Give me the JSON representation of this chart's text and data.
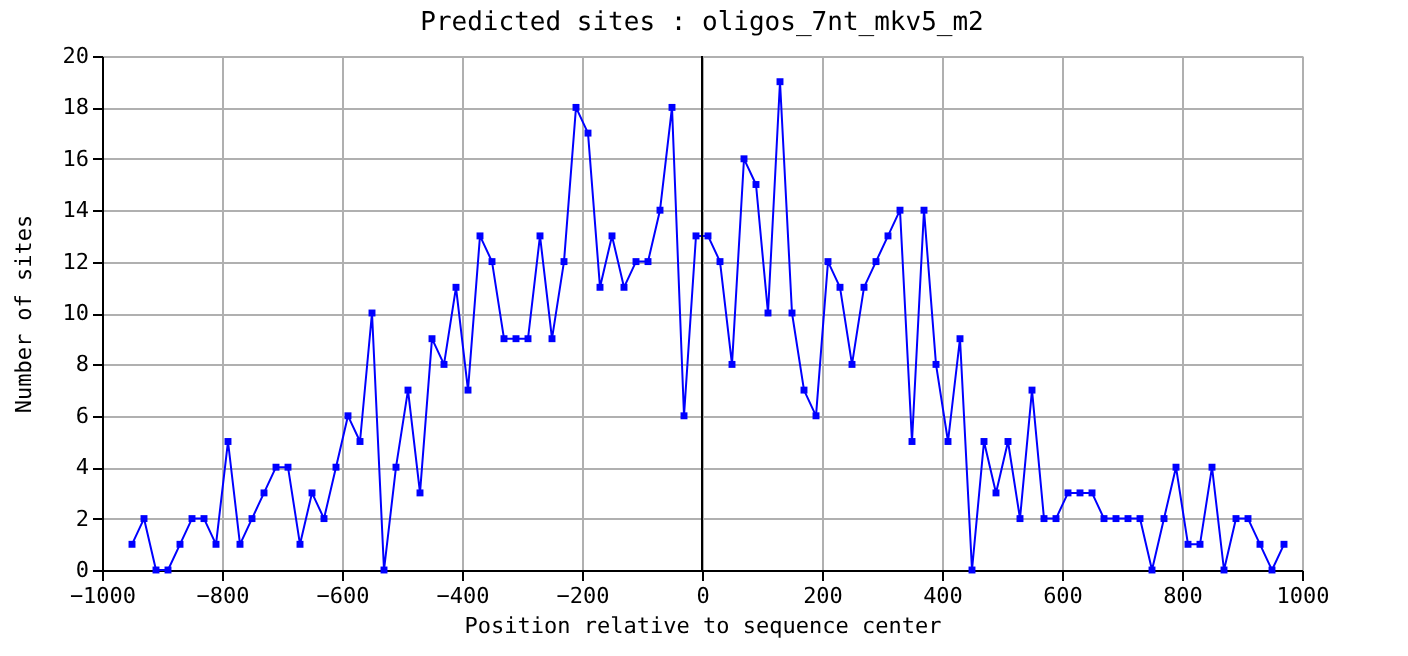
{
  "chart_data": {
    "type": "line",
    "title": "Predicted sites : oligos_7nt_mkv5_m2",
    "xlabel": "Position relative to sequence center",
    "ylabel": "Number of sites",
    "x": [
      -950,
      -930,
      -910,
      -890,
      -870,
      -850,
      -830,
      -810,
      -790,
      -770,
      -750,
      -730,
      -710,
      -690,
      -670,
      -650,
      -630,
      -610,
      -590,
      -570,
      -550,
      -530,
      -510,
      -490,
      -470,
      -450,
      -430,
      -410,
      -390,
      -370,
      -350,
      -330,
      -310,
      -290,
      -270,
      -250,
      -230,
      -210,
      -190,
      -170,
      -150,
      -130,
      -110,
      -90,
      -70,
      -50,
      -30,
      -10,
      10,
      30,
      50,
      70,
      90,
      110,
      130,
      150,
      170,
      190,
      210,
      230,
      250,
      270,
      290,
      310,
      330,
      350,
      370,
      390,
      410,
      430,
      450,
      470,
      490,
      510,
      530,
      550,
      570,
      590,
      610,
      630,
      650,
      670,
      690,
      710,
      730,
      750,
      770,
      790,
      810,
      830,
      850,
      870,
      890,
      910,
      930,
      950,
      970
    ],
    "series": [
      {
        "color": "#0000ff",
        "values": [
          1,
          2,
          0,
          0,
          1,
          2,
          2,
          1,
          5,
          1,
          2,
          3,
          4,
          4,
          1,
          3,
          2,
          4,
          6,
          5,
          10,
          0,
          4,
          7,
          3,
          9,
          8,
          11,
          7,
          13,
          12,
          9,
          9,
          9,
          13,
          9,
          12,
          18,
          17,
          11,
          13,
          11,
          12,
          12,
          14,
          18,
          6,
          13,
          13,
          12,
          8,
          16,
          15,
          10,
          19,
          10,
          7,
          6,
          12,
          11,
          8,
          11,
          12,
          13,
          14,
          5,
          14,
          8,
          5,
          9,
          0,
          5,
          3,
          5,
          2,
          7,
          2,
          2,
          3,
          3,
          3,
          2,
          2,
          2,
          2,
          0,
          2,
          4,
          1,
          1,
          4,
          0,
          2,
          2,
          1,
          0,
          1
        ]
      }
    ],
    "xlim": [
      -1000,
      1000
    ],
    "xticks": [
      -1000,
      -800,
      -600,
      -400,
      -200,
      0,
      200,
      400,
      600,
      800,
      1000
    ],
    "ylim": [
      0,
      20
    ],
    "yticks": [
      0,
      2,
      4,
      6,
      8,
      10,
      12,
      14,
      16,
      18,
      20
    ],
    "ref_lines": [
      {
        "axis": "x",
        "value": 0,
        "color": "#000000"
      }
    ],
    "grid": true,
    "marker": "square",
    "line_style": "solid"
  }
}
